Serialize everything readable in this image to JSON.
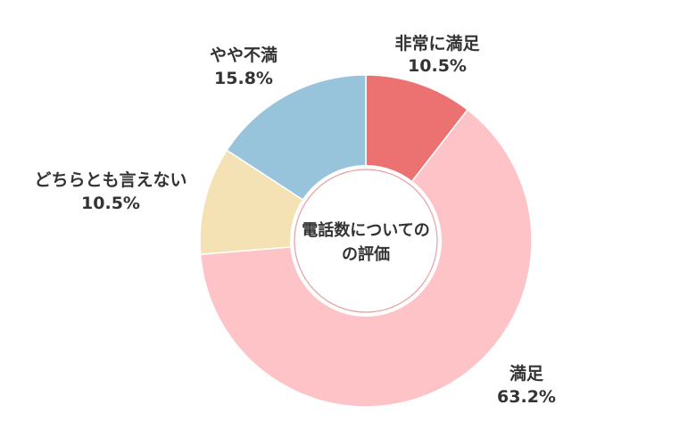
{
  "chart_data": {
    "type": "pie",
    "variant": "donut",
    "title": "電話数についての評価",
    "title_lines": [
      "電話数についての",
      "の評価"
    ],
    "categories": [
      "非常に満足",
      "満足",
      "どちらとも言えない",
      "やや不満"
    ],
    "values": [
      10.5,
      63.2,
      10.5,
      15.8
    ],
    "value_labels": [
      "10.5%",
      "63.2%",
      "10.5%",
      "15.8%"
    ],
    "colors": [
      "#EC7272",
      "#FDC3C6",
      "#F5E2B4",
      "#97C4DA"
    ],
    "start": "top",
    "direction": "clockwise",
    "legend": "none"
  }
}
